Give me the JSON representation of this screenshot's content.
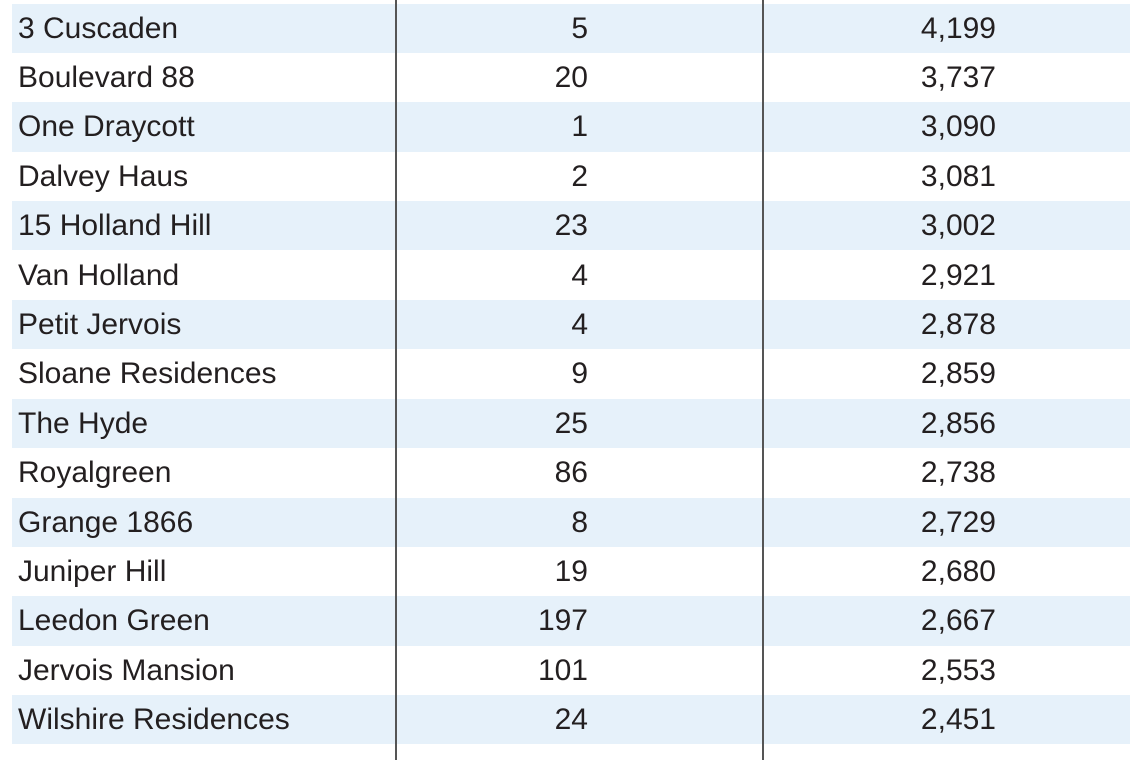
{
  "table": {
    "rows": [
      [
        "3 Cuscaden",
        "5",
        "4,199"
      ],
      [
        "Boulevard 88",
        "20",
        "3,737"
      ],
      [
        "One Draycott",
        "1",
        "3,090"
      ],
      [
        "Dalvey Haus",
        "2",
        "3,081"
      ],
      [
        "15 Holland Hill",
        "23",
        "3,002"
      ],
      [
        "Van Holland",
        "4",
        "2,921"
      ],
      [
        "Petit Jervois",
        "4",
        "2,878"
      ],
      [
        "Sloane Residences",
        "9",
        "2,859"
      ],
      [
        "The Hyde",
        "25",
        "2,856"
      ],
      [
        "Royalgreen",
        "86",
        "2,738"
      ],
      [
        "Grange 1866",
        "8",
        "2,729"
      ],
      [
        "Juniper Hill",
        "19",
        "2,680"
      ],
      [
        "Leedon Green",
        "197",
        "2,667"
      ],
      [
        "Jervois Mansion",
        "101",
        "2,553"
      ],
      [
        "Wilshire Residences",
        "24",
        "2,451"
      ]
    ]
  }
}
